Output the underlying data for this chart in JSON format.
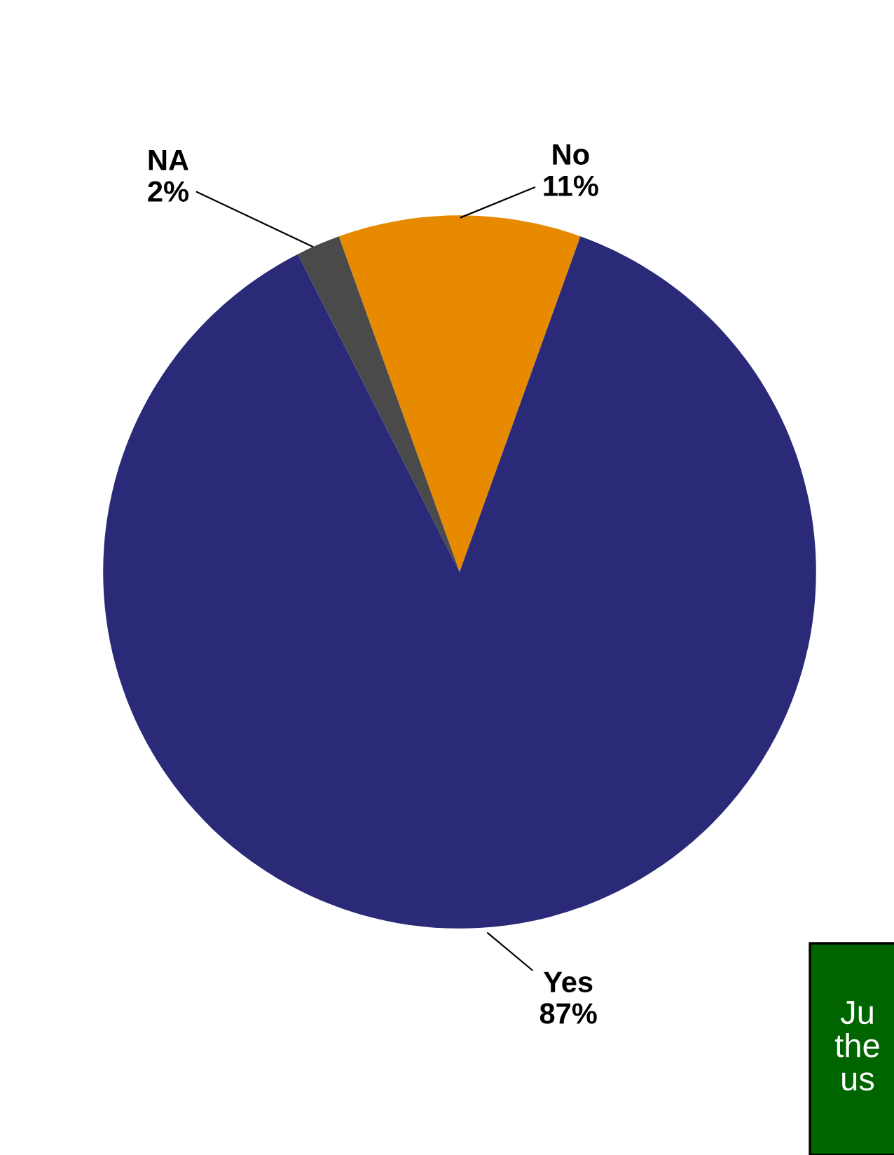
{
  "chart_data": {
    "type": "pie",
    "categories": [
      "No",
      "NA",
      "Yes"
    ],
    "values": [
      11,
      2,
      87
    ],
    "colors": [
      "#e88a00",
      "#4a4a4a",
      "#2a2a78"
    ],
    "value_labels": [
      "11%",
      "2%",
      "87%"
    ],
    "annotations": [
      "Ju\nthe\nus"
    ]
  }
}
